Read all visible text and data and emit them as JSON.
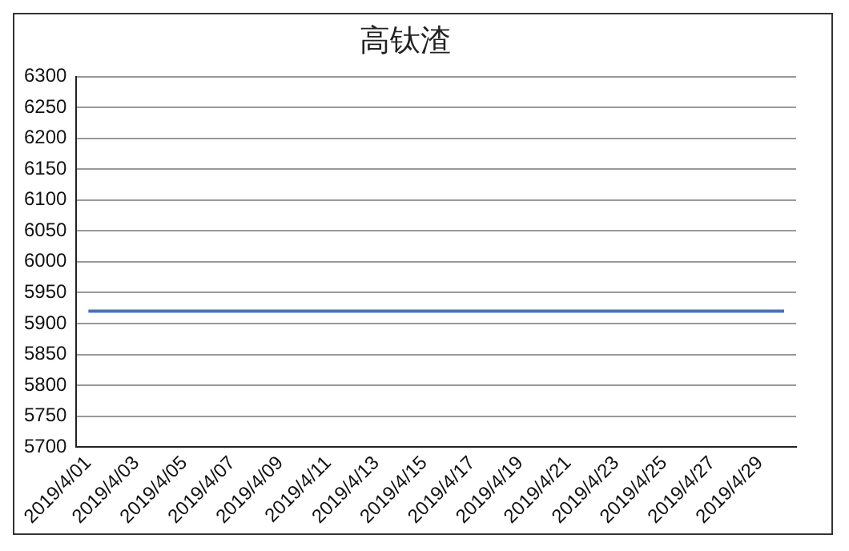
{
  "chart_data": {
    "type": "line",
    "title": "高钛渣",
    "categories": [
      "2019/4/01",
      null,
      "2019/4/03",
      null,
      "2019/4/05",
      null,
      "2019/4/07",
      null,
      "2019/4/09",
      null,
      "2019/4/11",
      null,
      "2019/4/13",
      null,
      "2019/4/15",
      null,
      "2019/4/17",
      null,
      "2019/4/19",
      null,
      "2019/4/21",
      null,
      "2019/4/23",
      null,
      "2019/4/25",
      null,
      "2019/4/27",
      null,
      "2019/4/29",
      null
    ],
    "series": [
      {
        "color": "#4472c4",
        "values": [
          5920,
          5920,
          5920,
          5920,
          5920,
          5920,
          5920,
          5920,
          5920,
          5920,
          5920,
          5920,
          5920,
          5920,
          5920,
          5920,
          5920,
          5920,
          5920,
          5920,
          5920,
          5920,
          5920,
          5920,
          5920,
          5920,
          5920,
          5920,
          5920,
          5920
        ]
      }
    ],
    "ylim": [
      5700,
      6300
    ],
    "yticks": [
      5700,
      5750,
      5800,
      5850,
      5900,
      5950,
      6000,
      6050,
      6100,
      6150,
      6200,
      6250,
      6300
    ],
    "grid": "y",
    "legend": false,
    "marker": "none",
    "line_style": "solid"
  }
}
